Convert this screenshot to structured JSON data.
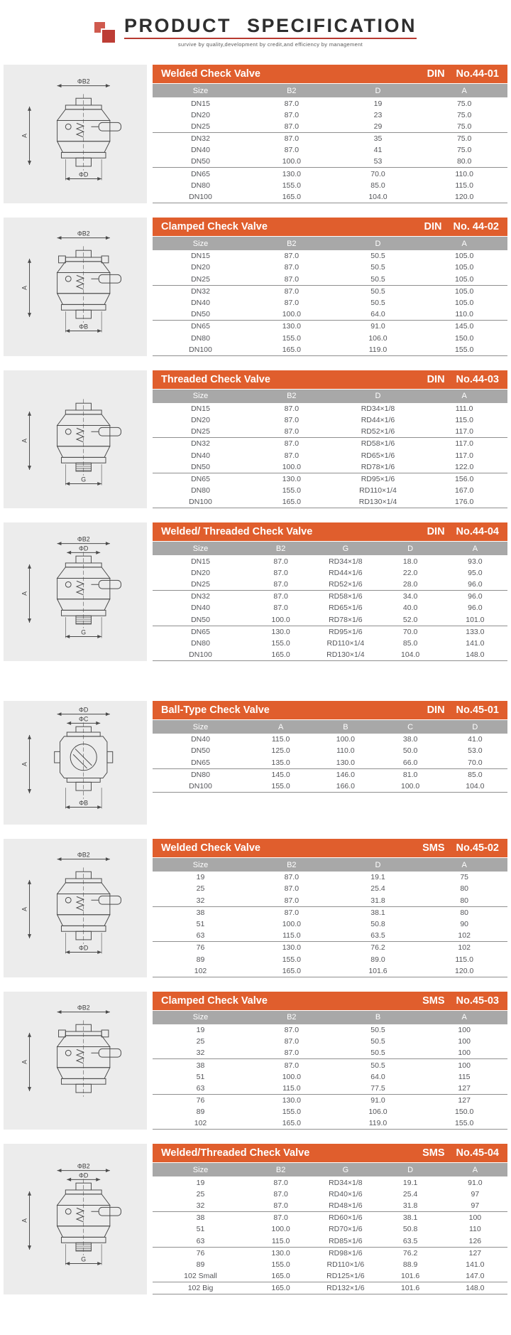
{
  "header": {
    "title": "PRODUCT SPECIFICATION",
    "tagline": "survive by quality,development by credit,and efficiency by management",
    "logo_icon": "overlapping-red-squares"
  },
  "colors": {
    "section_header_bg": "#e05e2d",
    "column_header_bg": "#a8a8a8",
    "accent_red": "#b73a30",
    "row_text": "#55565a",
    "drawing_bg": "#ececec"
  },
  "sections": [
    {
      "title": "Welded Check Valve",
      "standard": "DIN",
      "number": "No.44-01",
      "drawing": {
        "type": "cone",
        "top": [
          "ΦB2"
        ],
        "left": "A",
        "bottom": "ΦD"
      },
      "columns": [
        "Size",
        "B2",
        "D",
        "A"
      ],
      "rows": [
        [
          "DN15",
          "87.0",
          "19",
          "75.0"
        ],
        [
          "DN20",
          "87.0",
          "23",
          "75.0"
        ],
        [
          "DN25",
          "87.0",
          "29",
          "75.0"
        ],
        [
          "DN32",
          "87.0",
          "35",
          "75.0"
        ],
        [
          "DN40",
          "87.0",
          "41",
          "75.0"
        ],
        [
          "DN50",
          "100.0",
          "53",
          "80.0"
        ],
        [
          "DN65",
          "130.0",
          "70.0",
          "110.0"
        ],
        [
          "DN80",
          "155.0",
          "85.0",
          "115.0"
        ],
        [
          "DN100",
          "165.0",
          "104.0",
          "120.0"
        ]
      ]
    },
    {
      "title": "Clamped Check Valve",
      "standard": "DIN",
      "number": "No. 44-02",
      "drawing": {
        "type": "clamp",
        "top": [
          "ΦB2"
        ],
        "left": "A",
        "bottom": "ΦB"
      },
      "columns": [
        "Size",
        "B2",
        "D",
        "A"
      ],
      "rows": [
        [
          "DN15",
          "87.0",
          "50.5",
          "105.0"
        ],
        [
          "DN20",
          "87.0",
          "50.5",
          "105.0"
        ],
        [
          "DN25",
          "87.0",
          "50.5",
          "105.0"
        ],
        [
          "DN32",
          "87.0",
          "50.5",
          "105.0"
        ],
        [
          "DN40",
          "87.0",
          "50.5",
          "105.0"
        ],
        [
          "DN50",
          "100.0",
          "64.0",
          "110.0"
        ],
        [
          "DN65",
          "130.0",
          "91.0",
          "145.0"
        ],
        [
          "DN80",
          "155.0",
          "106.0",
          "150.0"
        ],
        [
          "DN100",
          "165.0",
          "119.0",
          "155.0"
        ]
      ]
    },
    {
      "title": "Threaded Check Valve",
      "standard": "DIN",
      "number": "No.44-03",
      "drawing": {
        "type": "thread",
        "top": [],
        "left": "A",
        "bottom": "G"
      },
      "columns": [
        "Size",
        "B2",
        "D",
        "A"
      ],
      "rows": [
        [
          "DN15",
          "87.0",
          "RD34×1/8",
          "111.0"
        ],
        [
          "DN20",
          "87.0",
          "RD44×1/6",
          "115.0"
        ],
        [
          "DN25",
          "87.0",
          "RD52×1/6",
          "117.0"
        ],
        [
          "DN32",
          "87.0",
          "RD58×1/6",
          "117.0"
        ],
        [
          "DN40",
          "87.0",
          "RD65×1/6",
          "117.0"
        ],
        [
          "DN50",
          "100.0",
          "RD78×1/6",
          "122.0"
        ],
        [
          "DN65",
          "130.0",
          "RD95×1/6",
          "156.0"
        ],
        [
          "DN80",
          "155.0",
          "RD110×1/4",
          "167.0"
        ],
        [
          "DN100",
          "165.0",
          "RD130×1/4",
          "176.0"
        ]
      ]
    },
    {
      "title": "Welded/ Threaded Check Valve",
      "standard": "DIN",
      "number": "No.44-04",
      "drawing": {
        "type": "thread",
        "top": [
          "ΦB2",
          "ΦD"
        ],
        "left": "A",
        "bottom": "G"
      },
      "columns": [
        "Size",
        "B2",
        "G",
        "D",
        "A"
      ],
      "rows": [
        [
          "DN15",
          "87.0",
          "RD34×1/8",
          "18.0",
          "93.0"
        ],
        [
          "DN20",
          "87.0",
          "RD44×1/6",
          "22.0",
          "95.0"
        ],
        [
          "DN25",
          "87.0",
          "RD52×1/6",
          "28.0",
          "96.0"
        ],
        [
          "DN32",
          "87.0",
          "RD58×1/6",
          "34.0",
          "96.0"
        ],
        [
          "DN40",
          "87.0",
          "RD65×1/6",
          "40.0",
          "96.0"
        ],
        [
          "DN50",
          "100.0",
          "RD78×1/6",
          "52.0",
          "101.0"
        ],
        [
          "DN65",
          "130.0",
          "RD95×1/6",
          "70.0",
          "133.0"
        ],
        [
          "DN80",
          "155.0",
          "RD110×1/4",
          "85.0",
          "141.0"
        ],
        [
          "DN100",
          "165.0",
          "RD130×1/4",
          "104.0",
          "148.0"
        ]
      ]
    },
    {
      "title": "Ball-Type Check Valve",
      "standard": "DIN",
      "number": "No.45-01",
      "drawing": {
        "type": "ball",
        "top": [
          "ΦD",
          "ΦC"
        ],
        "left": "A",
        "bottom": "ΦB"
      },
      "columns": [
        "Size",
        "A",
        "B",
        "C",
        "D"
      ],
      "rows": [
        [
          "DN40",
          "115.0",
          "100.0",
          "38.0",
          "41.0"
        ],
        [
          "DN50",
          "125.0",
          "110.0",
          "50.0",
          "53.0"
        ],
        [
          "DN65",
          "135.0",
          "130.0",
          "66.0",
          "70.0"
        ],
        [
          "DN80",
          "145.0",
          "146.0",
          "81.0",
          "85.0"
        ],
        [
          "DN100",
          "155.0",
          "166.0",
          "100.0",
          "104.0"
        ]
      ]
    },
    {
      "title": "Welded Check Valve",
      "standard": "SMS",
      "number": "No.45-02",
      "drawing": {
        "type": "cone",
        "top": [
          "ΦB2"
        ],
        "left": "A",
        "bottom": "ΦD"
      },
      "columns": [
        "Size",
        "B2",
        "D",
        "A"
      ],
      "rows": [
        [
          "19",
          "87.0",
          "19.1",
          "75"
        ],
        [
          "25",
          "87.0",
          "25.4",
          "80"
        ],
        [
          "32",
          "87.0",
          "31.8",
          "80"
        ],
        [
          "38",
          "87.0",
          "38.1",
          "80"
        ],
        [
          "51",
          "100.0",
          "50.8",
          "90"
        ],
        [
          "63",
          "115.0",
          "63.5",
          "102"
        ],
        [
          "76",
          "130.0",
          "76.2",
          "102"
        ],
        [
          "89",
          "155.0",
          "89.0",
          "115.0"
        ],
        [
          "102",
          "165.0",
          "101.6",
          "120.0"
        ]
      ]
    },
    {
      "title": "Clamped Check Valve",
      "standard": "SMS",
      "number": "No.45-03",
      "drawing": {
        "type": "clamp",
        "top": [
          "ΦB2"
        ],
        "left": "A",
        "bottom": ""
      },
      "columns": [
        "Size",
        "B2",
        "B",
        "A"
      ],
      "rows": [
        [
          "19",
          "87.0",
          "50.5",
          "100"
        ],
        [
          "25",
          "87.0",
          "50.5",
          "100"
        ],
        [
          "32",
          "87.0",
          "50.5",
          "100"
        ],
        [
          "38",
          "87.0",
          "50.5",
          "100"
        ],
        [
          "51",
          "100.0",
          "64.0",
          "115"
        ],
        [
          "63",
          "115.0",
          "77.5",
          "127"
        ],
        [
          "76",
          "130.0",
          "91.0",
          "127"
        ],
        [
          "89",
          "155.0",
          "106.0",
          "150.0"
        ],
        [
          "102",
          "165.0",
          "119.0",
          "155.0"
        ]
      ]
    },
    {
      "title": "Welded/Threaded Check Valve",
      "standard": "SMS",
      "number": "No.45-04",
      "drawing": {
        "type": "thread",
        "top": [
          "ΦB2",
          "ΦD"
        ],
        "left": "A",
        "bottom": "G"
      },
      "columns": [
        "Size",
        "B2",
        "G",
        "D",
        "A"
      ],
      "rows": [
        [
          "19",
          "87.0",
          "RD34×1/8",
          "19.1",
          "91.0"
        ],
        [
          "25",
          "87.0",
          "RD40×1/6",
          "25.4",
          "97"
        ],
        [
          "32",
          "87.0",
          "RD48×1/6",
          "31.8",
          "97"
        ],
        [
          "38",
          "87.0",
          "RD60×1/6",
          "38.1",
          "100"
        ],
        [
          "51",
          "100.0",
          "RD70×1/6",
          "50.8",
          "110"
        ],
        [
          "63",
          "115.0",
          "RD85×1/6",
          "63.5",
          "126"
        ],
        [
          "76",
          "130.0",
          "RD98×1/6",
          "76.2",
          "127"
        ],
        [
          "89",
          "155.0",
          "RD110×1/6",
          "88.9",
          "141.0"
        ],
        [
          "102 Small",
          "165.0",
          "RD125×1/6",
          "101.6",
          "147.0"
        ],
        [
          "102 Big",
          "165.0",
          "RD132×1/6",
          "101.6",
          "148.0"
        ]
      ]
    }
  ]
}
